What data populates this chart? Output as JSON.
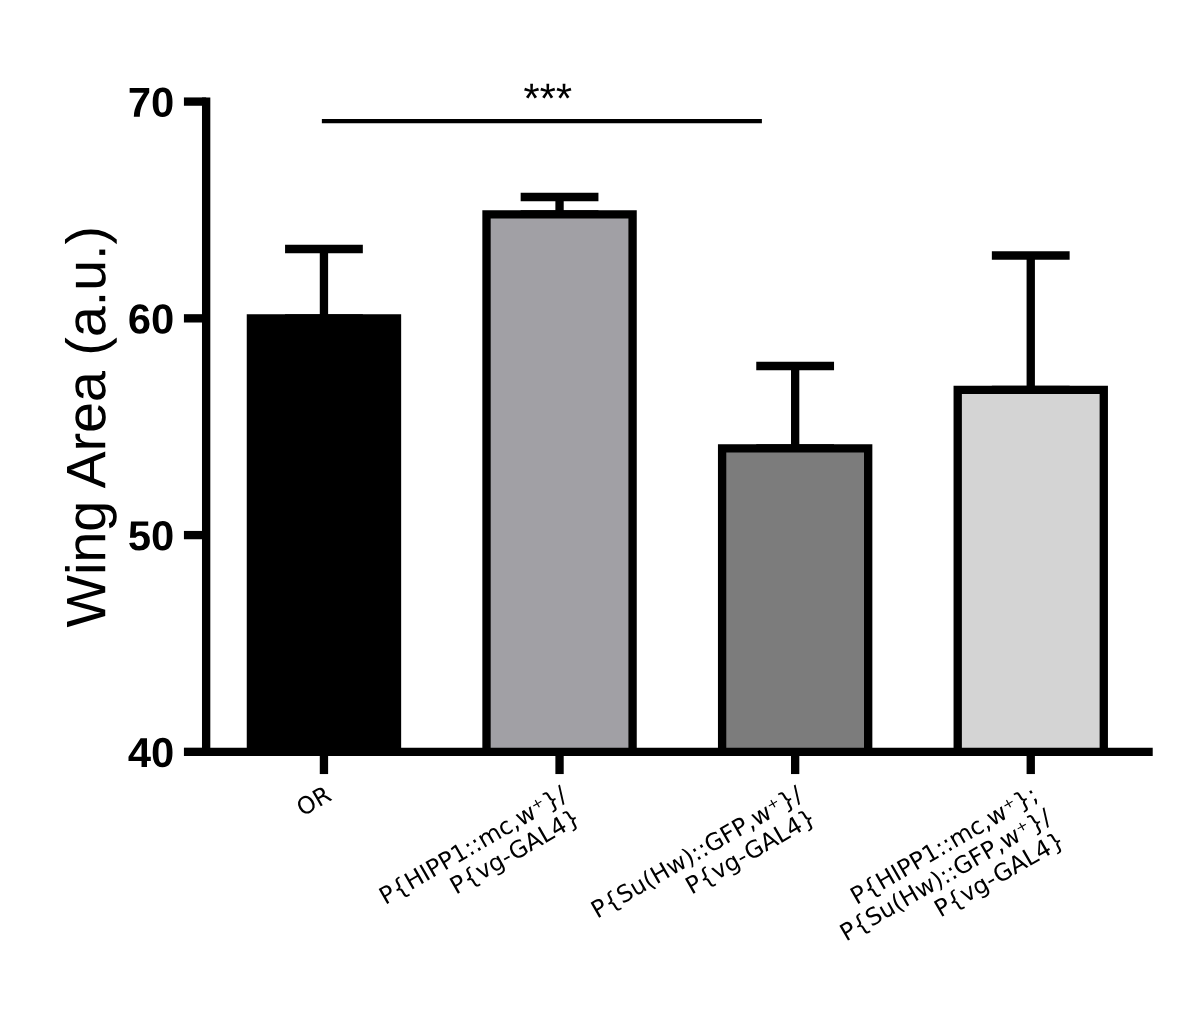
{
  "chart_data": {
    "type": "bar",
    "ylabel": "Wing Area (a.u.)",
    "categories": [
      "OR",
      "P{HIPP1::mc,w⁺}/\nP{vg-GAL4}",
      "P{Su(Hw)::GFP,w⁺}/\nP{vg-GAL4}",
      "P{HIPP1::mc,w⁺};\nP{Su(Hw)::GFP,w⁺}/\nP{vg-GAL4}"
    ],
    "values": [
      60.0,
      64.8,
      54.0,
      56.7
    ],
    "errors": [
      3.2,
      0.8,
      3.8,
      6.2
    ],
    "colors": [
      "#000000",
      "#a1a0a5",
      "#7c7c7c",
      "#d4d4d4"
    ],
    "ylim": [
      40,
      70
    ],
    "yticks": [
      40,
      50,
      60,
      70
    ],
    "grid": false,
    "annotations": [
      "***"
    ]
  }
}
